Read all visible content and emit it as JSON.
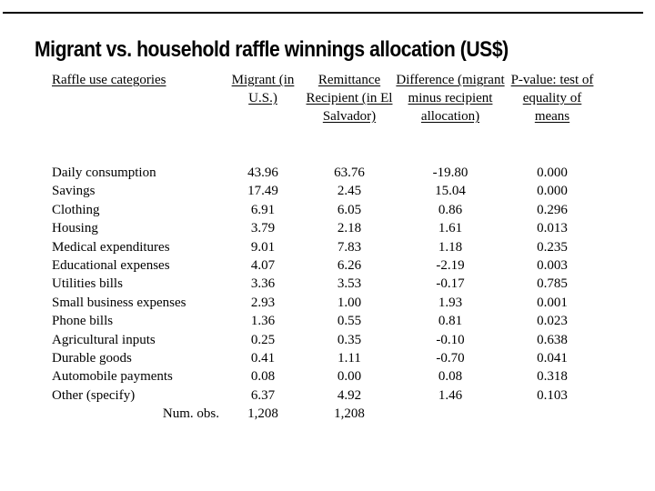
{
  "slide": {
    "title": "Migrant vs. household raffle winnings allocation (US$)"
  },
  "table": {
    "headers": {
      "category": "Raffle use categories",
      "migrant": "Migrant (in U.S.)",
      "recipient": "Remittance Recipient (in El Salvador)",
      "difference": "Difference (migrant minus recipient allocation)",
      "pvalue": "P-value: test of equality of means"
    },
    "rows": [
      {
        "label": "Daily consumption",
        "migrant": "43.96",
        "recipient": "63.76",
        "difference": "-19.80",
        "pvalue": "0.000"
      },
      {
        "label": "Savings",
        "migrant": "17.49",
        "recipient": "2.45",
        "difference": "15.04",
        "pvalue": "0.000"
      },
      {
        "label": "Clothing",
        "migrant": "6.91",
        "recipient": "6.05",
        "difference": "0.86",
        "pvalue": "0.296"
      },
      {
        "label": "Housing",
        "migrant": "3.79",
        "recipient": "2.18",
        "difference": "1.61",
        "pvalue": "0.013"
      },
      {
        "label": "Medical expenditures",
        "migrant": "9.01",
        "recipient": "7.83",
        "difference": "1.18",
        "pvalue": "0.235"
      },
      {
        "label": "Educational expenses",
        "migrant": "4.07",
        "recipient": "6.26",
        "difference": "-2.19",
        "pvalue": "0.003"
      },
      {
        "label": "Utilities bills",
        "migrant": "3.36",
        "recipient": "3.53",
        "difference": "-0.17",
        "pvalue": "0.785"
      },
      {
        "label": "Small business expenses",
        "migrant": "2.93",
        "recipient": "1.00",
        "difference": "1.93",
        "pvalue": "0.001"
      },
      {
        "label": "Phone bills",
        "migrant": "1.36",
        "recipient": "0.55",
        "difference": "0.81",
        "pvalue": "0.023"
      },
      {
        "label": "Agricultural inputs",
        "migrant": "0.25",
        "recipient": "0.35",
        "difference": "-0.10",
        "pvalue": "0.638"
      },
      {
        "label": "Durable goods",
        "migrant": "0.41",
        "recipient": "1.11",
        "difference": "-0.70",
        "pvalue": "0.041"
      },
      {
        "label": "Automobile payments",
        "migrant": "0.08",
        "recipient": "0.00",
        "difference": "0.08",
        "pvalue": "0.318"
      },
      {
        "label": "Other (specify)",
        "migrant": "6.37",
        "recipient": "4.92",
        "difference": "1.46",
        "pvalue": "0.103"
      }
    ],
    "footer": {
      "label": "Num. obs.",
      "migrant": "1,208",
      "recipient": "1,208"
    }
  }
}
